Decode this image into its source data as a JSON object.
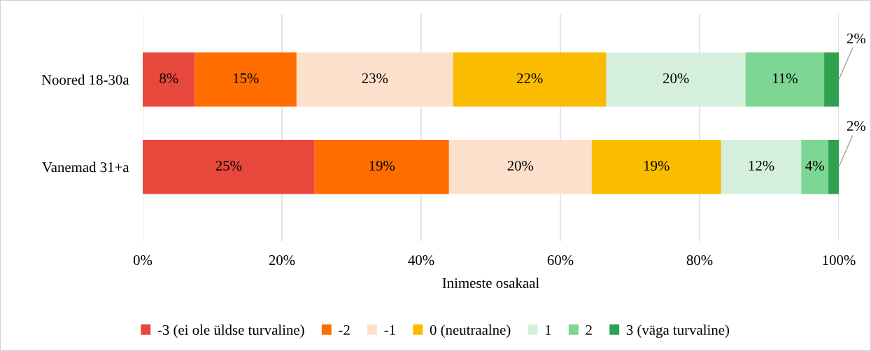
{
  "chart_data": {
    "type": "bar",
    "orientation": "horizontal",
    "stacked": true,
    "categories": [
      "Noored 18-30a",
      "Vanemad 31+a"
    ],
    "xlabel": "Inimeste osakaal",
    "xlim": [
      0,
      100
    ],
    "xticks": [
      {
        "value": 0,
        "label": "0%"
      },
      {
        "value": 20,
        "label": "20%"
      },
      {
        "value": 40,
        "label": "40%"
      },
      {
        "value": 60,
        "label": "60%"
      },
      {
        "value": 80,
        "label": "80%"
      },
      {
        "value": 100,
        "label": "100%"
      }
    ],
    "grid": "x",
    "legend": "bottom",
    "series": [
      {
        "name": "-3 (ei ole üldse turvaline)",
        "color": "#e8473b",
        "values": [
          7.5,
          24.7
        ],
        "value_labels": [
          "8%",
          "25%"
        ]
      },
      {
        "name": "-2",
        "color": "#ff6d00",
        "values": [
          14.6,
          19.3
        ],
        "value_labels": [
          "15%",
          "19%"
        ]
      },
      {
        "name": "-1",
        "color": "#fde0cc",
        "values": [
          22.5,
          20.5
        ],
        "value_labels": [
          "23%",
          "20%"
        ]
      },
      {
        "name": "0 (neutraalne)",
        "color": "#f9bc00",
        "values": [
          22.0,
          18.6
        ],
        "value_labels": [
          "22%",
          "19%"
        ]
      },
      {
        "name": "1",
        "color": "#d4f0dc",
        "values": [
          20.0,
          11.5
        ],
        "value_labels": [
          "20%",
          "12%"
        ]
      },
      {
        "name": "2",
        "color": "#7dd694",
        "values": [
          11.3,
          3.9
        ],
        "value_labels": [
          "11%",
          "4%"
        ]
      },
      {
        "name": "3 (väga turvaline)",
        "color": "#2ea24f",
        "values": [
          2.1,
          1.5
        ],
        "value_labels": [
          "2%",
          "2%"
        ]
      }
    ]
  }
}
